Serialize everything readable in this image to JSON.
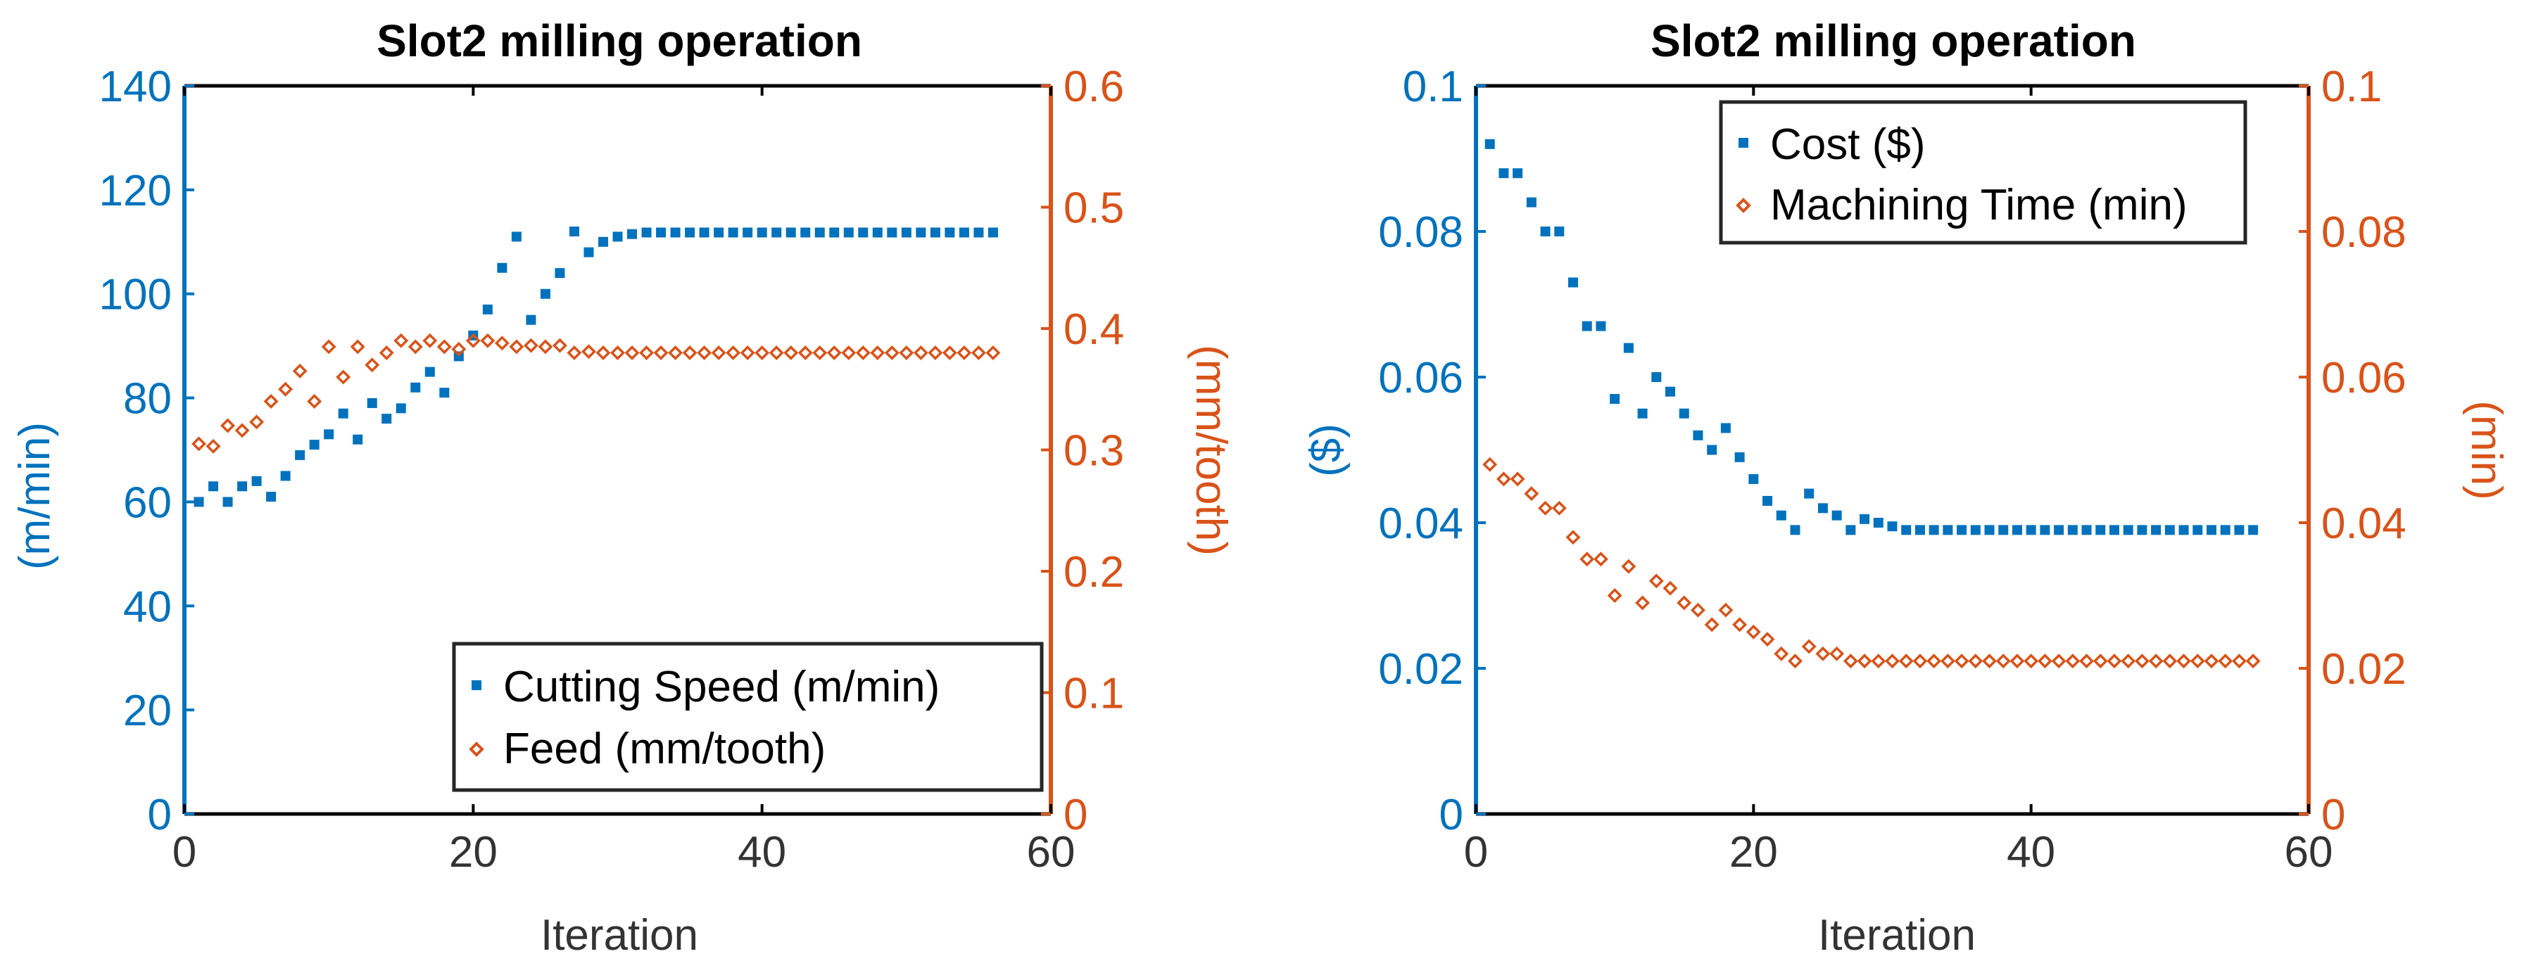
{
  "colors": {
    "left_axis": "#0072BD",
    "right_axis": "#D95319",
    "frame": "#000000"
  },
  "chart_data": [
    {
      "type": "scatter",
      "title": "Slot2 milling operation",
      "xlabel": "Iteration",
      "ylabel_left": "(m/min)",
      "ylabel_right": "(mm/tooth)",
      "xlim": [
        0,
        60
      ],
      "ylim_left": [
        0,
        140
      ],
      "ylim_right": [
        0,
        0.6
      ],
      "xticks": [
        "0",
        "20",
        "40",
        "60"
      ],
      "yticks_left": [
        "0",
        "20",
        "40",
        "60",
        "80",
        "100",
        "120",
        "140"
      ],
      "yticks_right": [
        "0",
        "0.1",
        "0.2",
        "0.3",
        "0.4",
        "0.5",
        "0.6"
      ],
      "legend_position": "bottom-right",
      "series": [
        {
          "name": "Cutting Speed (m/min)",
          "axis": "left",
          "marker": "square",
          "color": "#0072BD",
          "x": [
            1,
            2,
            3,
            4,
            5,
            6,
            7,
            8,
            9,
            10,
            11,
            12,
            13,
            14,
            15,
            16,
            17,
            18,
            19,
            20,
            21,
            22,
            23,
            24,
            25,
            26,
            27,
            28,
            29,
            30,
            31,
            32,
            33,
            34,
            35,
            36,
            37,
            38,
            39,
            40,
            41,
            42,
            43,
            44,
            45,
            46,
            47,
            48,
            49,
            50,
            51,
            52,
            53,
            54,
            55,
            56
          ],
          "values": [
            60,
            63,
            60,
            63,
            64,
            61,
            65,
            69,
            71,
            73,
            77,
            72,
            79,
            76,
            78,
            82,
            85,
            81,
            88,
            92,
            97,
            105,
            111,
            95,
            100,
            104,
            112,
            108,
            110,
            111,
            111.5,
            111.8,
            111.8,
            111.8,
            111.8,
            111.8,
            111.8,
            111.8,
            111.8,
            111.8,
            111.8,
            111.8,
            111.8,
            111.8,
            111.8,
            111.8,
            111.8,
            111.8,
            111.8,
            111.8,
            111.8,
            111.8,
            111.8,
            111.8,
            111.8,
            111.8
          ]
        },
        {
          "name": "Feed (mm/tooth)",
          "axis": "right",
          "marker": "diamond",
          "color": "#D95319",
          "x": [
            1,
            2,
            3,
            4,
            5,
            6,
            7,
            8,
            9,
            10,
            11,
            12,
            13,
            14,
            15,
            16,
            17,
            18,
            19,
            20,
            21,
            22,
            23,
            24,
            25,
            26,
            27,
            28,
            29,
            30,
            31,
            32,
            33,
            34,
            35,
            36,
            37,
            38,
            39,
            40,
            41,
            42,
            43,
            44,
            45,
            46,
            47,
            48,
            49,
            50,
            51,
            52,
            53,
            54,
            55,
            56
          ],
          "values": [
            0.305,
            0.303,
            0.32,
            0.316,
            0.323,
            0.34,
            0.35,
            0.365,
            0.34,
            0.385,
            0.36,
            0.385,
            0.37,
            0.38,
            0.39,
            0.385,
            0.39,
            0.385,
            0.383,
            0.39,
            0.39,
            0.388,
            0.385,
            0.386,
            0.385,
            0.386,
            0.38,
            0.381,
            0.38,
            0.38,
            0.38,
            0.38,
            0.38,
            0.38,
            0.38,
            0.38,
            0.38,
            0.38,
            0.38,
            0.38,
            0.38,
            0.38,
            0.38,
            0.38,
            0.38,
            0.38,
            0.38,
            0.38,
            0.38,
            0.38,
            0.38,
            0.38,
            0.38,
            0.38,
            0.38,
            0.38
          ]
        }
      ]
    },
    {
      "type": "scatter",
      "title": "Slot2 milling operation",
      "xlabel": "Iteration",
      "ylabel_left": "($)",
      "ylabel_right": "(min)",
      "xlim": [
        0,
        60
      ],
      "ylim_left": [
        0,
        0.1
      ],
      "ylim_right": [
        0,
        0.1
      ],
      "xticks": [
        "0",
        "20",
        "40",
        "60"
      ],
      "yticks_left": [
        "0",
        "0.02",
        "0.04",
        "0.06",
        "0.08",
        "0.1"
      ],
      "yticks_right": [
        "0",
        "0.02",
        "0.04",
        "0.06",
        "0.08",
        "0.1"
      ],
      "legend_position": "top-right",
      "series": [
        {
          "name": "Cost ($)",
          "axis": "left",
          "marker": "square",
          "color": "#0072BD",
          "x": [
            1,
            2,
            3,
            4,
            5,
            6,
            7,
            8,
            9,
            10,
            11,
            12,
            13,
            14,
            15,
            16,
            17,
            18,
            19,
            20,
            21,
            22,
            23,
            24,
            25,
            26,
            27,
            28,
            29,
            30,
            31,
            32,
            33,
            34,
            35,
            36,
            37,
            38,
            39,
            40,
            41,
            42,
            43,
            44,
            45,
            46,
            47,
            48,
            49,
            50,
            51,
            52,
            53,
            54,
            55,
            56
          ],
          "values": [
            0.092,
            0.088,
            0.088,
            0.084,
            0.08,
            0.08,
            0.073,
            0.067,
            0.067,
            0.057,
            0.064,
            0.055,
            0.06,
            0.058,
            0.055,
            0.052,
            0.05,
            0.053,
            0.049,
            0.046,
            0.043,
            0.041,
            0.039,
            0.044,
            0.042,
            0.041,
            0.039,
            0.0405,
            0.04,
            0.0395,
            0.039,
            0.039,
            0.039,
            0.039,
            0.039,
            0.039,
            0.039,
            0.039,
            0.039,
            0.039,
            0.039,
            0.039,
            0.039,
            0.039,
            0.039,
            0.039,
            0.039,
            0.039,
            0.039,
            0.039,
            0.039,
            0.039,
            0.039,
            0.039,
            0.039,
            0.039
          ]
        },
        {
          "name": "Machining Time (min)",
          "axis": "right",
          "marker": "diamond",
          "color": "#D95319",
          "x": [
            1,
            2,
            3,
            4,
            5,
            6,
            7,
            8,
            9,
            10,
            11,
            12,
            13,
            14,
            15,
            16,
            17,
            18,
            19,
            20,
            21,
            22,
            23,
            24,
            25,
            26,
            27,
            28,
            29,
            30,
            31,
            32,
            33,
            34,
            35,
            36,
            37,
            38,
            39,
            40,
            41,
            42,
            43,
            44,
            45,
            46,
            47,
            48,
            49,
            50,
            51,
            52,
            53,
            54,
            55,
            56
          ],
          "values": [
            0.048,
            0.046,
            0.046,
            0.044,
            0.042,
            0.042,
            0.038,
            0.035,
            0.035,
            0.03,
            0.034,
            0.029,
            0.032,
            0.031,
            0.029,
            0.028,
            0.026,
            0.028,
            0.026,
            0.025,
            0.024,
            0.022,
            0.021,
            0.023,
            0.022,
            0.022,
            0.021,
            0.021,
            0.021,
            0.021,
            0.021,
            0.021,
            0.021,
            0.021,
            0.021,
            0.021,
            0.021,
            0.021,
            0.021,
            0.021,
            0.021,
            0.021,
            0.021,
            0.021,
            0.021,
            0.021,
            0.021,
            0.021,
            0.021,
            0.021,
            0.021,
            0.021,
            0.021,
            0.021,
            0.021,
            0.021
          ]
        }
      ]
    }
  ]
}
